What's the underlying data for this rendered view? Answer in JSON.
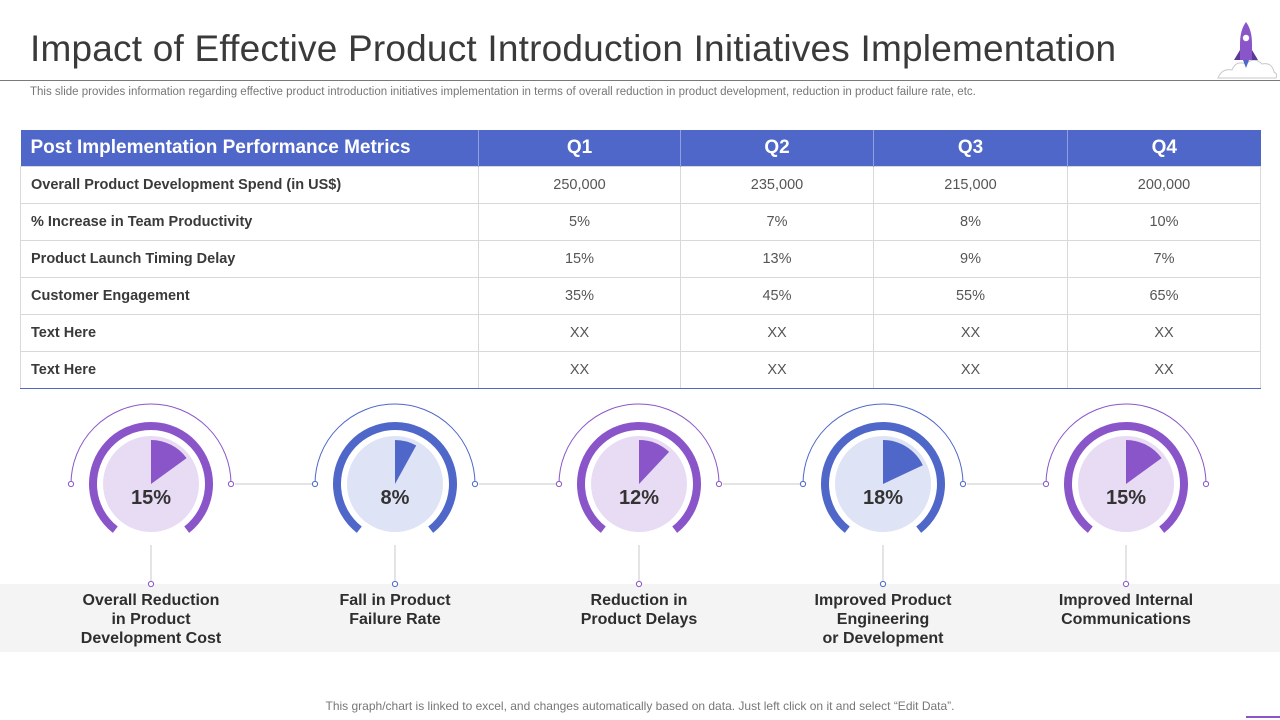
{
  "title": "Impact of Effective Product Introduction Initiatives Implementation",
  "subtitle": "This slide provides information regarding effective product introduction initiatives implementation in terms of overall reduction in product development, reduction in product failure rate, etc.",
  "colors": {
    "blue": "#4f67c8",
    "purple": "#8a55c9",
    "light_purple": "#e8dcf5",
    "light_blue": "#dfe3f6"
  },
  "table": {
    "headers": [
      "Post Implementation Performance Metrics",
      "Q1",
      "Q2",
      "Q3",
      "Q4"
    ],
    "rows": [
      {
        "label": "Overall Product Development Spend (in US$)",
        "values": [
          "250,000",
          "235,000",
          "215,000",
          "200,000"
        ]
      },
      {
        "label": "% Increase in Team Productivity",
        "values": [
          "5%",
          "7%",
          "8%",
          "10%"
        ]
      },
      {
        "label": "Product Launch  Timing Delay",
        "values": [
          "15%",
          "13%",
          "9%",
          "7%"
        ]
      },
      {
        "label": "Customer Engagement",
        "values": [
          "35%",
          "45%",
          "55%",
          "65%"
        ]
      },
      {
        "label": "Text Here",
        "values": [
          "XX",
          "XX",
          "XX",
          "XX"
        ]
      },
      {
        "label": "Text Here",
        "values": [
          "XX",
          "XX",
          "XX",
          "XX"
        ]
      }
    ]
  },
  "gauges": [
    {
      "value": 15,
      "display": "15%",
      "color": "purple",
      "label": "Overall Reduction\nin Product\nDevelopment Cost"
    },
    {
      "value": 8,
      "display": "8%",
      "color": "blue",
      "label": "Fall in Product\nFailure Rate"
    },
    {
      "value": 12,
      "display": "12%",
      "color": "purple",
      "label": "Reduction in\nProduct Delays"
    },
    {
      "value": 18,
      "display": "18%",
      "color": "blue",
      "label": "Improved Product\nEngineering\nor Development"
    },
    {
      "value": 15,
      "display": "15%",
      "color": "purple",
      "label": "Improved Internal\nCommunications"
    }
  ],
  "footnote": "This graph/chart is linked to excel, and changes automatically based on data. Just left click on it and select “Edit Data”."
}
